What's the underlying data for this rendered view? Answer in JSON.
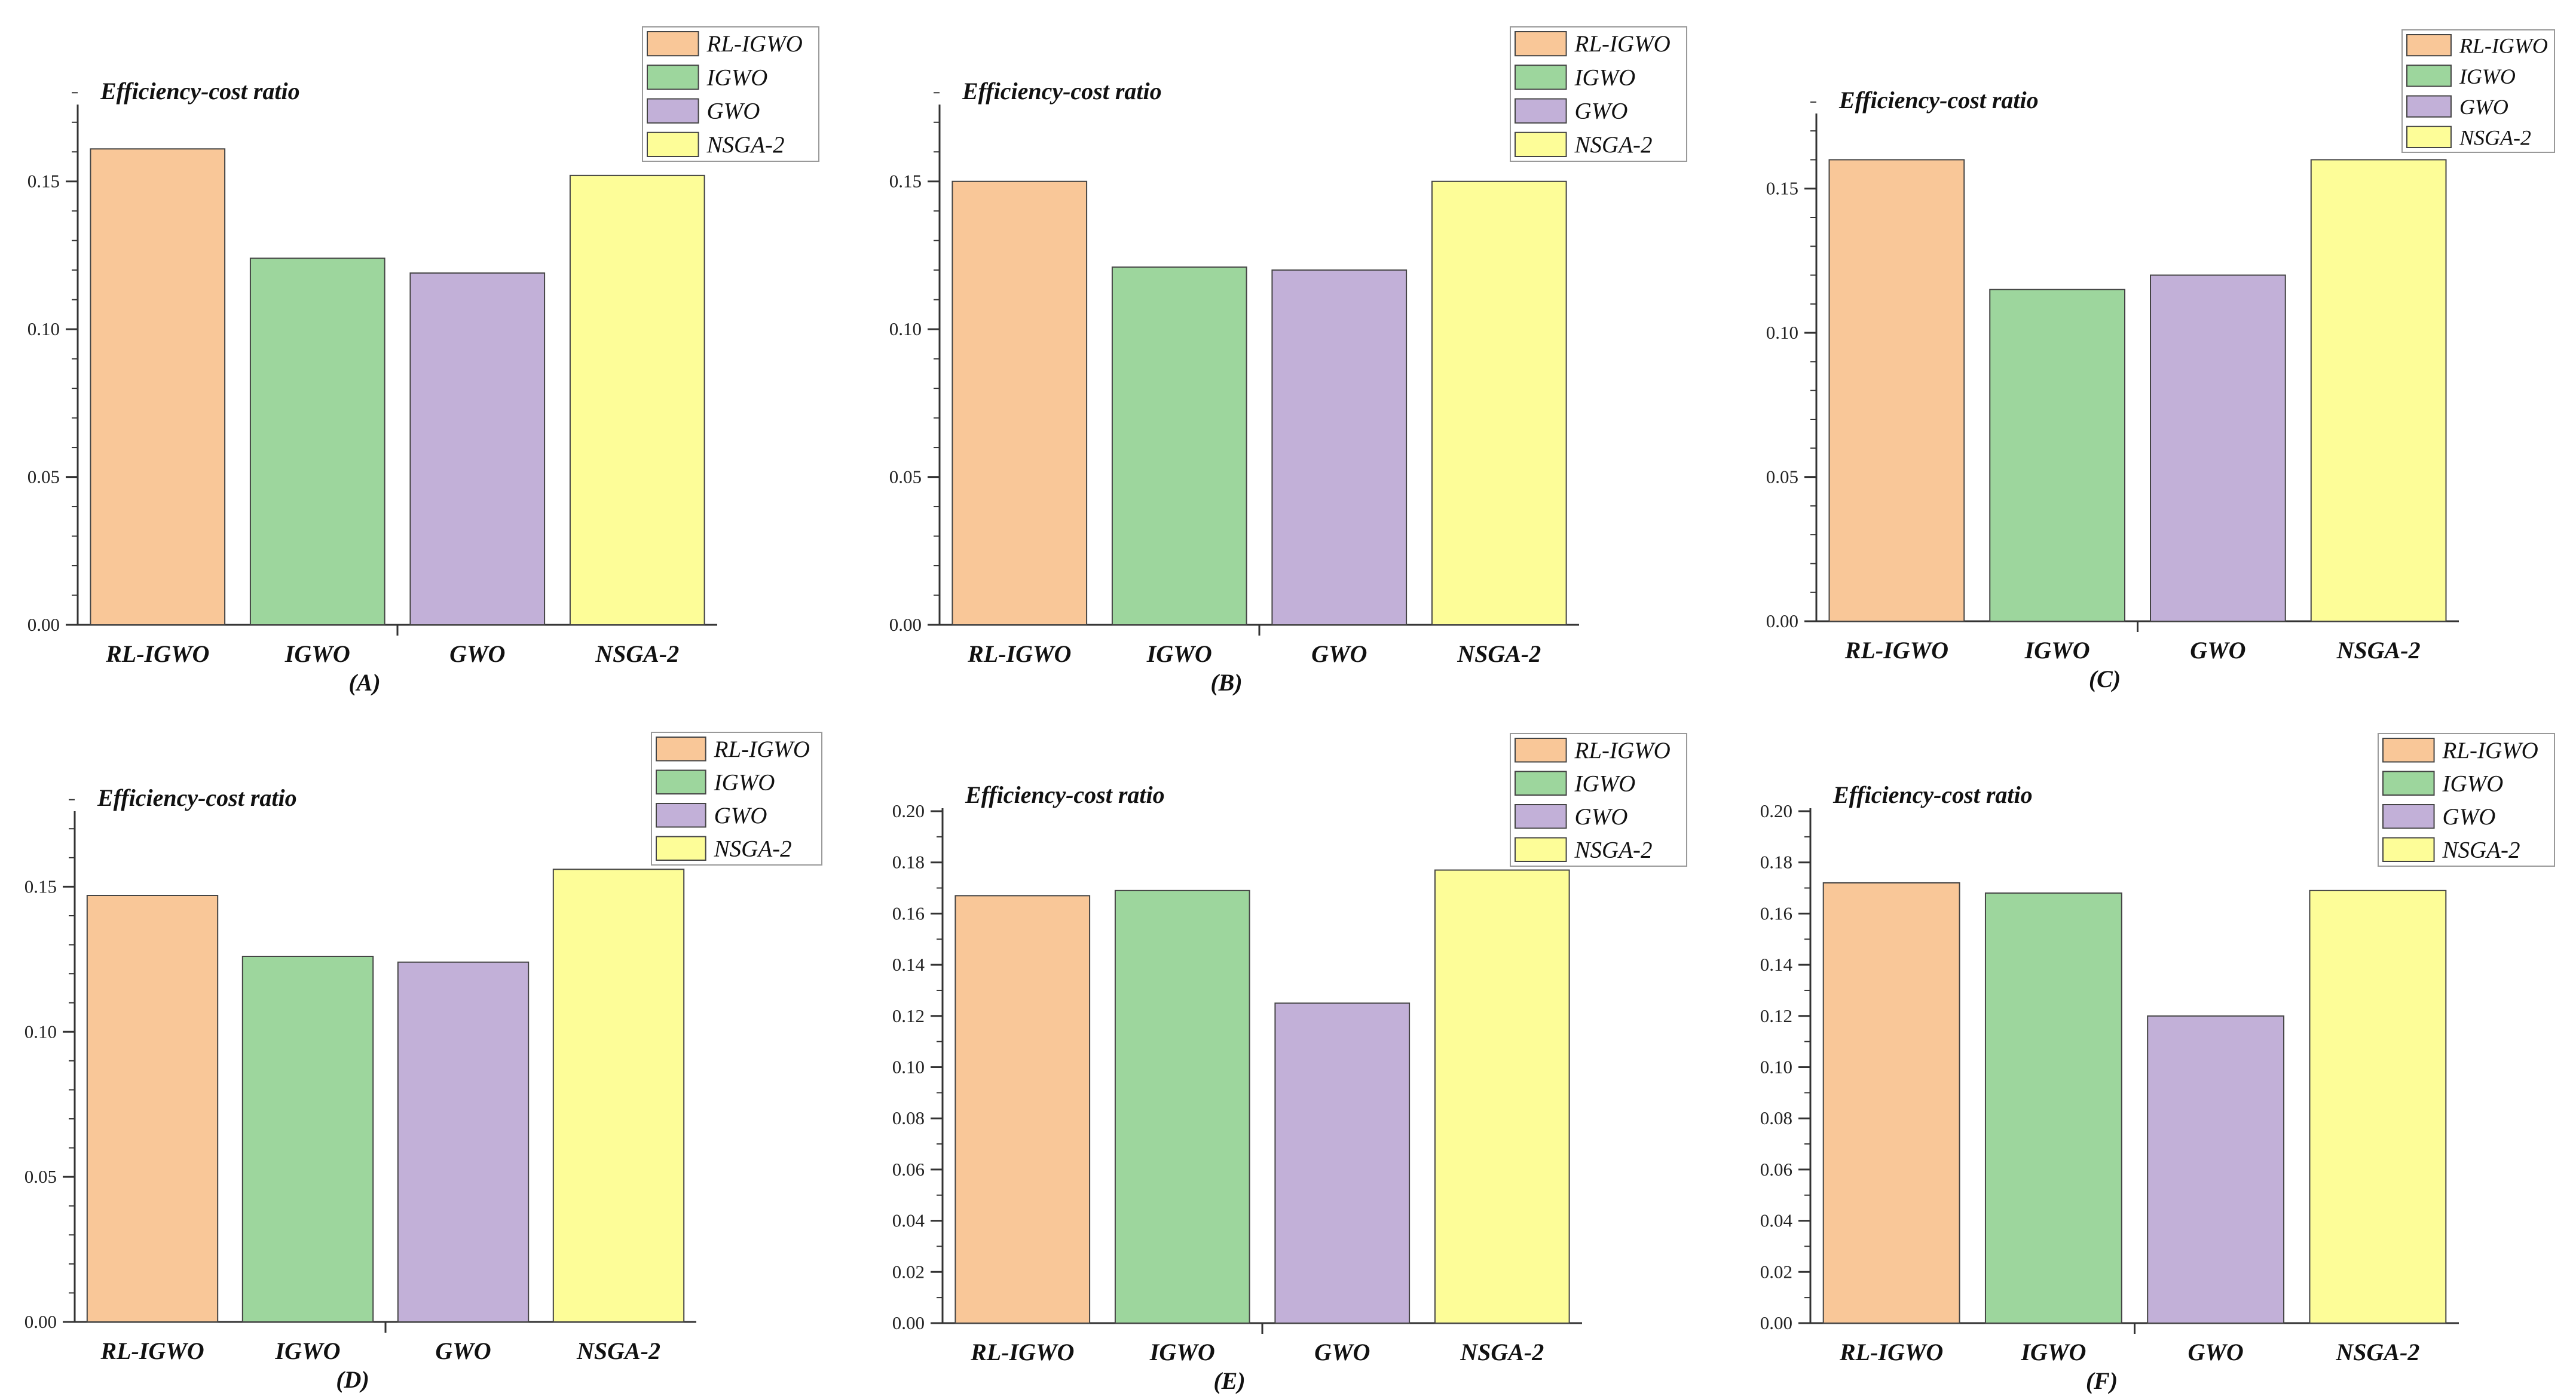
{
  "colors": {
    "RL-IGWO": "#f9c798",
    "IGWO": "#9dd69d",
    "GWO": "#c2b0d8",
    "NSGA-2": "#fdfd98",
    "axis": "#333333",
    "bar_outline": "#444444"
  },
  "chart_data": [
    {
      "panel": "(A)",
      "type": "bar",
      "title": "Efficiency-cost ratio",
      "categories": [
        "RL-IGWO",
        "IGWO",
        "GWO",
        "NSGA-2"
      ],
      "values": [
        0.161,
        0.124,
        0.119,
        0.152
      ],
      "ylim": [
        0,
        0.175
      ],
      "yticks": [
        "0.00",
        "0.05",
        "0.10",
        "0.15"
      ],
      "ytick_values": [
        0,
        0.05,
        0.1,
        0.15
      ],
      "minor_step": 0.01,
      "legend": [
        "RL-IGWO",
        "IGWO",
        "GWO",
        "NSGA-2"
      ],
      "legend_position": "top-right"
    },
    {
      "panel": "(B)",
      "type": "bar",
      "title": "Efficiency-cost ratio",
      "categories": [
        "RL-IGWO",
        "IGWO",
        "GWO",
        "NSGA-2"
      ],
      "values": [
        0.15,
        0.121,
        0.12,
        0.15
      ],
      "ylim": [
        0,
        0.175
      ],
      "yticks": [
        "0.00",
        "0.05",
        "0.10",
        "0.15"
      ],
      "ytick_values": [
        0,
        0.05,
        0.1,
        0.15
      ],
      "minor_step": 0.01,
      "legend": [
        "RL-IGWO",
        "IGWO",
        "GWO",
        "NSGA-2"
      ],
      "legend_position": "top-right"
    },
    {
      "panel": "(C)",
      "type": "bar",
      "title": "Efficiency-cost ratio",
      "categories": [
        "RL-IGWO",
        "IGWO",
        "GWO",
        "NSGA-2"
      ],
      "values": [
        0.16,
        0.115,
        0.12,
        0.16
      ],
      "ylim": [
        0,
        0.175
      ],
      "yticks": [
        "0.00",
        "0.05",
        "0.10",
        "0.15"
      ],
      "ytick_values": [
        0,
        0.05,
        0.1,
        0.15
      ],
      "minor_step": 0.01,
      "legend": [
        "RL-IGWO",
        "IGWO",
        "GWO",
        "NSGA-2"
      ],
      "legend_position": "top-right"
    },
    {
      "panel": "(D)",
      "type": "bar",
      "title": "Efficiency-cost ratio",
      "categories": [
        "RL-IGWO",
        "IGWO",
        "GWO",
        "NSGA-2"
      ],
      "values": [
        0.147,
        0.126,
        0.124,
        0.156
      ],
      "ylim": [
        0,
        0.175
      ],
      "yticks": [
        "0.00",
        "0.05",
        "0.10",
        "0.15"
      ],
      "ytick_values": [
        0,
        0.05,
        0.1,
        0.15
      ],
      "minor_step": 0.01,
      "legend": [
        "RL-IGWO",
        "IGWO",
        "GWO",
        "NSGA-2"
      ],
      "legend_position": "top-right"
    },
    {
      "panel": "(E)",
      "type": "bar",
      "title": "Efficiency-cost ratio",
      "categories": [
        "RL-IGWO",
        "IGWO",
        "GWO",
        "NSGA-2"
      ],
      "values": [
        0.167,
        0.169,
        0.125,
        0.177
      ],
      "ylim": [
        0,
        0.2
      ],
      "yticks": [
        "0.00",
        "0.02",
        "0.04",
        "0.06",
        "0.08",
        "0.10",
        "0.12",
        "0.14",
        "0.16",
        "0.18",
        "0.20"
      ],
      "ytick_values": [
        0,
        0.02,
        0.04,
        0.06,
        0.08,
        0.1,
        0.12,
        0.14,
        0.16,
        0.18,
        0.2
      ],
      "minor_step": 0.01,
      "legend": [
        "RL-IGWO",
        "IGWO",
        "GWO",
        "NSGA-2"
      ],
      "legend_position": "top-right"
    },
    {
      "panel": "(F)",
      "type": "bar",
      "title": "Efficiency-cost ratio",
      "categories": [
        "RL-IGWO",
        "IGWO",
        "GWO",
        "NSGA-2"
      ],
      "values": [
        0.172,
        0.168,
        0.12,
        0.169
      ],
      "ylim": [
        0,
        0.2
      ],
      "yticks": [
        "0.00",
        "0.02",
        "0.04",
        "0.06",
        "0.08",
        "0.10",
        "0.12",
        "0.14",
        "0.16",
        "0.18",
        "0.20"
      ],
      "ytick_values": [
        0,
        0.02,
        0.04,
        0.06,
        0.08,
        0.1,
        0.12,
        0.14,
        0.16,
        0.18,
        0.2
      ],
      "minor_step": 0.01,
      "legend": [
        "RL-IGWO",
        "IGWO",
        "GWO",
        "NSGA-2"
      ],
      "legend_position": "top-right"
    }
  ]
}
